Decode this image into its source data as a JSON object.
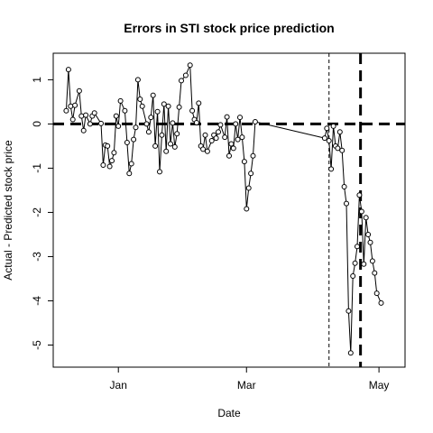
{
  "chart_data": {
    "type": "line",
    "title": "Errors in STI stock price prediction",
    "xlabel": "Date",
    "ylabel": "Actual - Predicted stock price",
    "x_ticks": [
      {
        "label": "Jan",
        "value": 31
      },
      {
        "label": "Mar",
        "value": 90
      },
      {
        "label": "May",
        "value": 151
      }
    ],
    "y_ticks": [
      -5,
      -4,
      -3,
      -2,
      -1,
      0,
      1
    ],
    "xlim": [
      1,
      163
    ],
    "ylim": [
      -5.5,
      1.6
    ],
    "reference_lines": {
      "horizontal_zero": 0,
      "vline_thin": 128,
      "vline_thick": 142.5
    },
    "series": [
      {
        "marker": "open-circle",
        "points": [
          [
            7,
            0.3
          ],
          [
            8,
            1.23
          ],
          [
            9,
            0.4
          ],
          [
            10,
            0.1
          ],
          [
            11,
            0.42
          ],
          [
            13,
            0.75
          ],
          [
            14,
            0.18
          ],
          [
            15,
            -0.15
          ],
          [
            16,
            0.2
          ],
          [
            18,
            0.0
          ],
          [
            19,
            0.18
          ],
          [
            20,
            0.25
          ],
          [
            23,
            0.01
          ],
          [
            24,
            -0.93
          ],
          [
            25,
            -0.48
          ],
          [
            26,
            -0.5
          ],
          [
            27,
            -0.96
          ],
          [
            28,
            -0.83
          ],
          [
            29,
            -0.65
          ],
          [
            30,
            0.18
          ],
          [
            31,
            -0.05
          ],
          [
            32,
            0.52
          ],
          [
            34,
            0.3
          ],
          [
            35,
            -0.42
          ],
          [
            36,
            -1.12
          ],
          [
            37,
            -0.9
          ],
          [
            38,
            -0.35
          ],
          [
            39,
            -0.08
          ],
          [
            40,
            1.0
          ],
          [
            41,
            0.56
          ],
          [
            42,
            0.4
          ],
          [
            44,
            0.0
          ],
          [
            45,
            -0.18
          ],
          [
            46,
            0.15
          ],
          [
            47,
            0.65
          ],
          [
            48,
            -0.5
          ],
          [
            49,
            0.28
          ],
          [
            50,
            -1.08
          ],
          [
            51,
            -0.25
          ],
          [
            52,
            0.45
          ],
          [
            53,
            -0.62
          ],
          [
            54,
            0.4
          ],
          [
            55,
            -0.45
          ],
          [
            56,
            0.02
          ],
          [
            57,
            -0.52
          ],
          [
            58,
            -0.22
          ],
          [
            59,
            0.38
          ],
          [
            60,
            0.98
          ],
          [
            62,
            1.1
          ],
          [
            64,
            1.33
          ],
          [
            65,
            0.3
          ],
          [
            66,
            0.1
          ],
          [
            67,
            0.03
          ],
          [
            68,
            0.47
          ],
          [
            69,
            -0.5
          ],
          [
            70,
            -0.57
          ],
          [
            71,
            -0.25
          ],
          [
            72,
            -0.62
          ],
          [
            74,
            -0.38
          ],
          [
            75,
            -0.25
          ],
          [
            76,
            -0.32
          ],
          [
            77,
            -0.18
          ],
          [
            78,
            -0.02
          ],
          [
            80,
            -0.3
          ],
          [
            81,
            0.16
          ],
          [
            82,
            -0.72
          ],
          [
            83,
            -0.45
          ],
          [
            84,
            -0.55
          ],
          [
            85,
            0.0
          ],
          [
            86,
            -0.35
          ],
          [
            87,
            0.15
          ],
          [
            88,
            -0.3
          ],
          [
            89,
            -0.85
          ],
          [
            90,
            -1.92
          ],
          [
            91,
            -1.45
          ],
          [
            92,
            -1.12
          ],
          [
            93,
            -0.72
          ],
          [
            94,
            0.05
          ],
          [
            126,
            -0.32
          ],
          [
            127,
            -0.1
          ],
          [
            128,
            -0.38
          ],
          [
            129,
            -1.02
          ],
          [
            130,
            -0.05
          ],
          [
            131,
            -0.5
          ],
          [
            132,
            -0.55
          ],
          [
            133,
            -0.18
          ],
          [
            134,
            -0.6
          ],
          [
            135,
            -1.42
          ],
          [
            136,
            -1.8
          ],
          [
            137,
            -4.23
          ],
          [
            138,
            -5.18
          ],
          [
            139,
            -3.44
          ],
          [
            140,
            -3.15
          ],
          [
            141,
            -2.77
          ],
          [
            142,
            -1.61
          ],
          [
            143,
            -1.98
          ],
          [
            144,
            -3.17
          ],
          [
            145,
            -2.12
          ],
          [
            146,
            -2.5
          ],
          [
            147,
            -2.68
          ],
          [
            148,
            -3.1
          ],
          [
            149,
            -3.37
          ],
          [
            150,
            -3.83
          ],
          [
            152,
            -4.05
          ]
        ]
      }
    ]
  }
}
